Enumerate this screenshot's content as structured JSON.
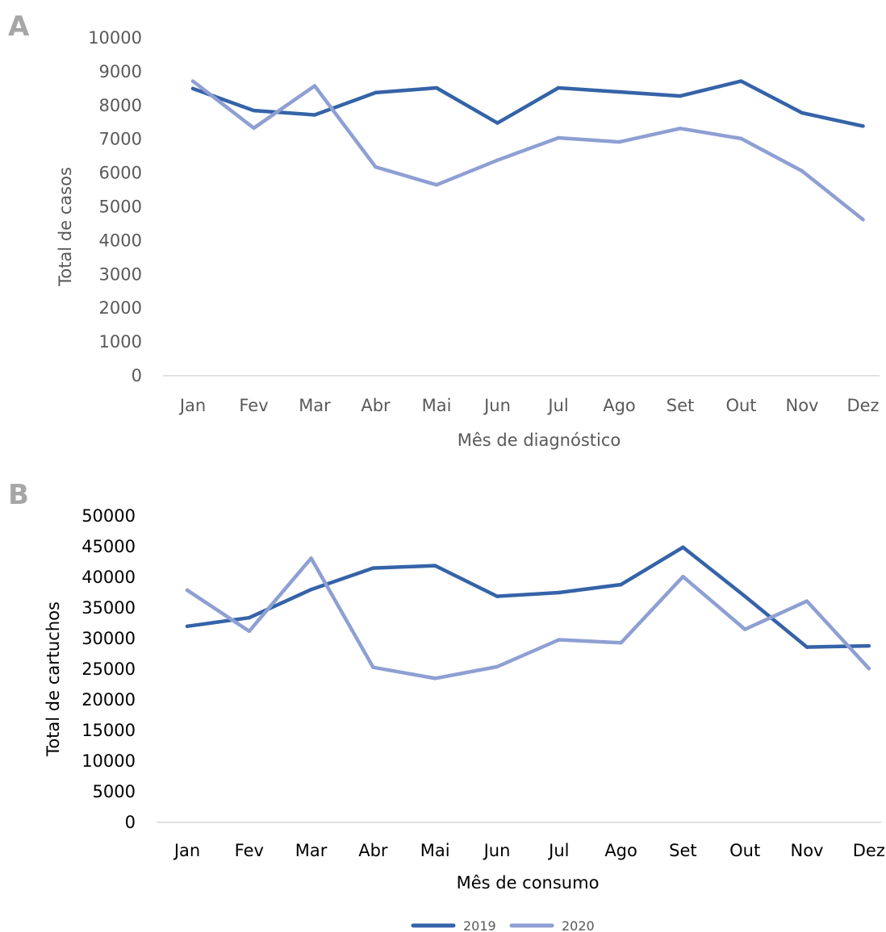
{
  "colors": {
    "series_2019": "#3563a8",
    "series_2020": "#8e9fd3",
    "axis_line": "#d9d9d9",
    "panel_letter": "#a6a6a6",
    "text_a": "#595959",
    "text_b": "#000000"
  },
  "legend": {
    "placement": "bottom-center",
    "items": [
      "2019",
      "2020"
    ]
  },
  "chart_data": [
    {
      "panel": "A",
      "type": "line",
      "xlabel": "Mês de diagnóstico",
      "ylabel": "Total de casos",
      "ylim": [
        0,
        10000
      ],
      "yticks": [
        "0",
        "1000",
        "2000",
        "3000",
        "4000",
        "5000",
        "6000",
        "7000",
        "8000",
        "9000",
        "10000"
      ],
      "grid": false,
      "categories": [
        "Jan",
        "Fev",
        "Mar",
        "Abr",
        "Mai",
        "Jun",
        "Jul",
        "Ago",
        "Set",
        "Out",
        "Nov",
        "Dez"
      ],
      "series": [
        {
          "name": "2019",
          "values": [
            8500,
            7850,
            7720,
            8380,
            8520,
            7480,
            8520,
            8400,
            8280,
            8720,
            7780,
            7390
          ]
        },
        {
          "name": "2020",
          "values": [
            8720,
            7330,
            8580,
            6180,
            5650,
            6380,
            7040,
            6920,
            7320,
            7020,
            6060,
            4620
          ]
        }
      ]
    },
    {
      "panel": "B",
      "type": "line",
      "xlabel": "Mês de consumo",
      "ylabel": "Total de cartuchos",
      "ylim": [
        0,
        50000
      ],
      "yticks": [
        "0",
        "5000",
        "10000",
        "15000",
        "20000",
        "25000",
        "30000",
        "35000",
        "40000",
        "45000",
        "50000"
      ],
      "grid": false,
      "categories": [
        "Jan",
        "Fev",
        "Mar",
        "Abr",
        "Mai",
        "Jun",
        "Jul",
        "Ago",
        "Set",
        "Out",
        "Nov",
        "Dez"
      ],
      "series": [
        {
          "name": "2019",
          "values": [
            32000,
            33400,
            38000,
            41500,
            41900,
            36900,
            37500,
            38800,
            44900,
            36900,
            28600,
            28800
          ]
        },
        {
          "name": "2020",
          "values": [
            37900,
            31200,
            43100,
            25300,
            23500,
            25400,
            29800,
            29300,
            40100,
            31500,
            36100,
            25100
          ]
        }
      ]
    }
  ]
}
